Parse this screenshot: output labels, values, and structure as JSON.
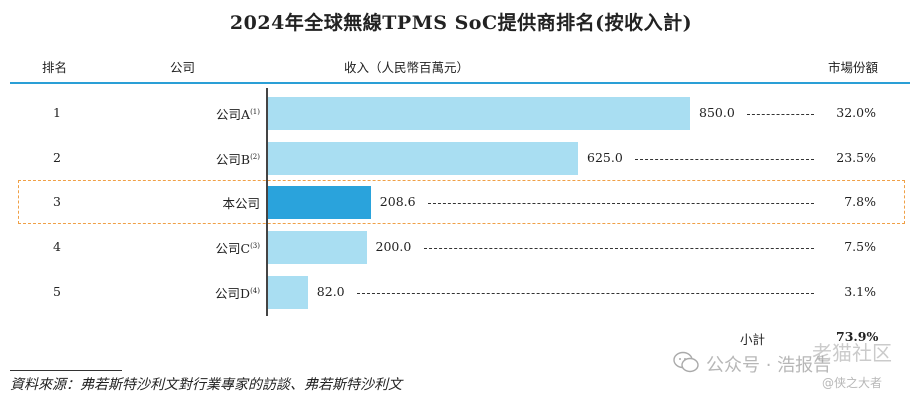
{
  "title": "2024年全球無線TPMS SoC提供商排名(按收入計)",
  "headers": {
    "rank": "排名",
    "company": "公司",
    "revenue": "收入（人民幣百萬元）",
    "share": "市場份額"
  },
  "chart_data": {
    "type": "bar",
    "orientation": "horizontal",
    "title": "2024年全球無線TPMS SoC提供商排名(按收入計)",
    "xlabel": "收入（人民幣百萬元）",
    "rows": [
      {
        "rank": "1",
        "company": "公司A",
        "note": "(1)",
        "value": 850.0,
        "value_label": "850.0",
        "share": "32.0%",
        "highlighted": false
      },
      {
        "rank": "2",
        "company": "公司B",
        "note": "(2)",
        "value": 625.0,
        "value_label": "625.0",
        "share": "23.5%",
        "highlighted": false
      },
      {
        "rank": "3",
        "company": "本公司",
        "note": "",
        "value": 208.6,
        "value_label": "208.6",
        "share": "7.8%",
        "highlighted": true
      },
      {
        "rank": "4",
        "company": "公司C",
        "note": "(3)",
        "value": 200.0,
        "value_label": "200.0",
        "share": "7.5%",
        "highlighted": false
      },
      {
        "rank": "5",
        "company": "公司D",
        "note": "(4)",
        "value": 82.0,
        "value_label": "82.0",
        "share": "3.1%",
        "highlighted": false
      }
    ],
    "colors": {
      "bar": "#a9def2",
      "highlight_bar": "#2aa3dc",
      "highlight_box": "#f0a046",
      "header_rule": "#2a9fd6"
    }
  },
  "subtotal": {
    "label": "小計",
    "value": "73.9%"
  },
  "source": "資料來源：弗若斯特沙利文對行業專家的訪談、弗若斯特沙利文",
  "watermark": {
    "text1": "公众号 · 浩报告",
    "text2": "老猫社区",
    "text3": "@侠之大者"
  }
}
